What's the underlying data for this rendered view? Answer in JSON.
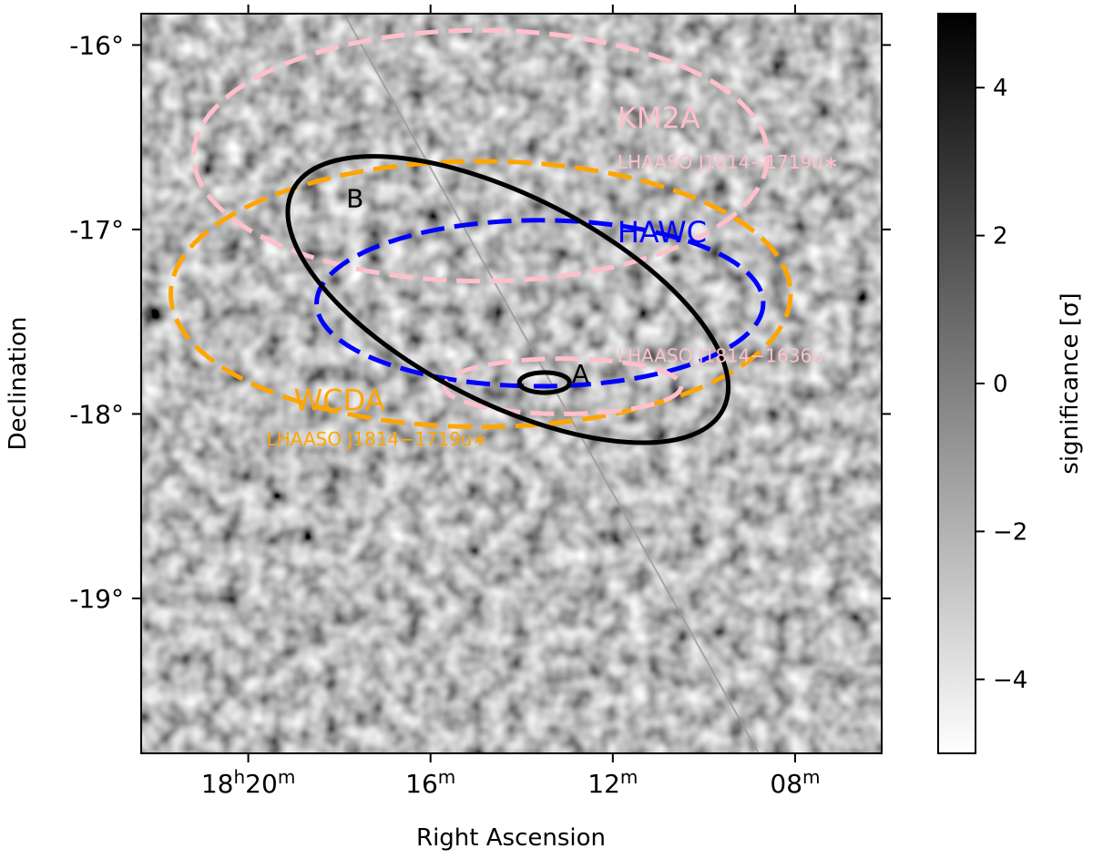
{
  "chart_data": {
    "type": "heatmap",
    "title": "",
    "xlabel": "Right Ascension",
    "ylabel": "Declination",
    "x_ticks": [
      {
        "label_main": "18",
        "sup1": "h",
        "label_mid": "20",
        "sup2": "m",
        "ra_min": 20
      },
      {
        "label_main": "",
        "sup1": "",
        "label_mid": "16",
        "sup2": "m",
        "ra_min": 16
      },
      {
        "label_main": "",
        "sup1": "",
        "label_mid": "12",
        "sup2": "m",
        "ra_min": 12
      },
      {
        "label_main": "",
        "sup1": "",
        "label_mid": "08",
        "sup2": "m",
        "ra_min": 8
      }
    ],
    "y_ticks": [
      {
        "label": "-16°",
        "dec": -16
      },
      {
        "label": "-17°",
        "dec": -17
      },
      {
        "label": "-18°",
        "dec": -18
      },
      {
        "label": "-19°",
        "dec": -19
      }
    ],
    "ra_range_min": [
      22.35,
      6.1
    ],
    "dec_range_deg": [
      -19.84,
      -15.83
    ],
    "colorbar": {
      "label": "significance [σ]",
      "range": [
        -5,
        5
      ],
      "ticks": [
        {
          "label": "4",
          "value": 4
        },
        {
          "label": "2",
          "value": 2
        },
        {
          "label": "0",
          "value": 0
        },
        {
          "label": "−2",
          "value": -2
        },
        {
          "label": "−4",
          "value": -4
        }
      ],
      "colormap": [
        "#ffffff",
        "#000000"
      ]
    },
    "regions": [
      {
        "name": "KM2A",
        "color": "#ffc0cb",
        "style": "dashed",
        "ra_min": 14.9,
        "dec": -16.6,
        "r_ra_min": 6.3,
        "r_dec": 0.68
      },
      {
        "name": "WCDA",
        "color": "#ffa500",
        "style": "dashed",
        "ra_min": 14.9,
        "dec": -17.35,
        "r_ra_min": 6.8,
        "r_dec": 0.72
      },
      {
        "name": "HAWC",
        "color": "#0000ff",
        "style": "dashed",
        "ra_min": 13.6,
        "dec": -17.4,
        "r_ra_min": 4.9,
        "r_dec": 0.45
      },
      {
        "name": "LHAASO J1814−1636u",
        "color": "#ffc0cb",
        "style": "dashed",
        "ra_min": 13.1,
        "dec": -17.85,
        "r_ra_min": 2.6,
        "r_dec": 0.15
      },
      {
        "name": "B",
        "color": "#000000",
        "style": "solid",
        "ra_min": 14.3,
        "dec": -17.38,
        "r_ra_min": 5.3,
        "r_dec": 0.56,
        "angle": 27
      },
      {
        "name": "A",
        "color": "#000000",
        "style": "solid",
        "ra_min": 13.5,
        "dec": -17.83,
        "r_ra_min": 0.55,
        "r_dec": 0.055
      }
    ],
    "galactic_plane": {
      "color": "#999999",
      "points": [
        [
          17.9,
          -15.83
        ],
        [
          8.8,
          -19.84
        ]
      ]
    },
    "annotations": [
      {
        "text": "KM2A",
        "color": "#ffc0cb",
        "ra_min": 11.9,
        "dec": -16.45,
        "size": "large"
      },
      {
        "text": "LHAASO J1814−1719u∗",
        "color": "#ffc0cb",
        "ra_min": 11.9,
        "dec": -16.67,
        "size": "small"
      },
      {
        "text": "HAWC",
        "color": "#0000ff",
        "ra_min": 11.9,
        "dec": -17.07,
        "size": "large"
      },
      {
        "text": "LHAASO J1814−1636u",
        "color": "#ffc0cb",
        "ra_min": 11.9,
        "dec": -17.72,
        "size": "small"
      },
      {
        "text": "WCDA",
        "color": "#ffa500",
        "ra_min": 19.0,
        "dec": -17.98,
        "size": "large"
      },
      {
        "text": "LHAASO J1814−1719u∗",
        "color": "#ffa500",
        "ra_min": 19.6,
        "dec": -18.17,
        "size": "small"
      },
      {
        "text": "B",
        "color": "#000000",
        "ra_min": 17.85,
        "dec": -16.88,
        "size": "medium"
      },
      {
        "text": "A",
        "color": "#000000",
        "ra_min": 12.9,
        "dec": -17.83,
        "size": "medium"
      }
    ]
  }
}
